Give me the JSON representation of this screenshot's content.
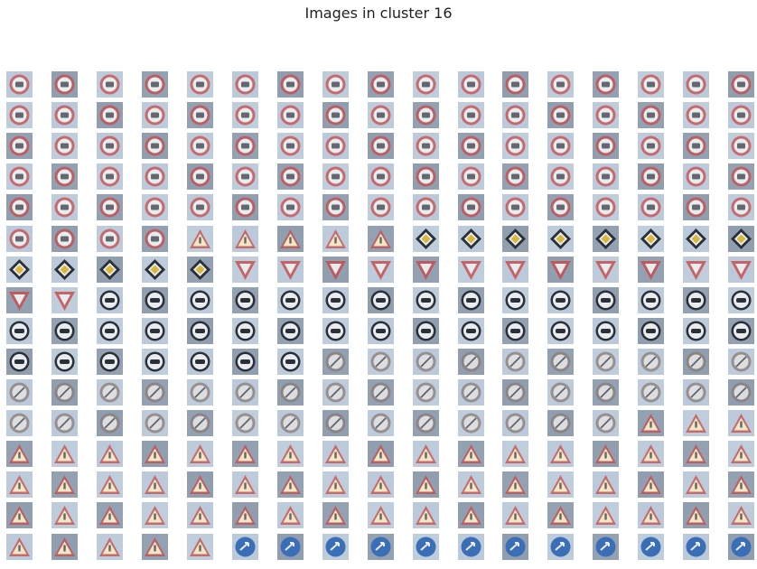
{
  "title": "Images in cluster 16",
  "grid": {
    "rows": 16,
    "cols": 17,
    "rows_spec": [
      "SSSSSSSSSSSSSSSSS",
      "SSSSSSSSSSSSSSSSS",
      "SSSSSSSSSSSSSSSSS",
      "SSSSSSSSSSSSSSSSS",
      "SSSSSSSSSSSSSSSSS",
      "SSSSTTTTTDDDDDDDD",
      "DDDDDYYYYYYYYYYYY",
      "YYOOOOOOOOOOOOOOO",
      "OOOOOOOOOOOOOOOOO",
      "OOOOOOONNNNNNNNNN",
      "NNNNNNNNNNNNNNNNN",
      "NNNNNNNNNNNNNNTTT",
      "TTTTTTTTTTTTTTTTT",
      "TTTTTTTTTTTTTTTTT",
      "TTTTTTTTTTTTTTTTT",
      "TTTTTBBBBBBBBBBBB"
    ],
    "types": {
      "S": "speed-limit-sign",
      "T": "warning-triangle-sign",
      "D": "priority-road-sign",
      "Y": "yield-sign",
      "O": "no-overtaking-sign",
      "N": "end-restriction-sign",
      "B": "blue-mandatory-sign"
    },
    "colors": {
      "bg_light": "#b9c7d8",
      "bg_dark": "#7f8fa3",
      "sign_red": "#c74a4a",
      "sign_white": "#e9ecef",
      "sign_dark": "#2a2f38",
      "sign_yellow": "#d9b73d",
      "sign_blue": "#3a6fb8",
      "triangle_fill": "#f1e7c6"
    }
  }
}
